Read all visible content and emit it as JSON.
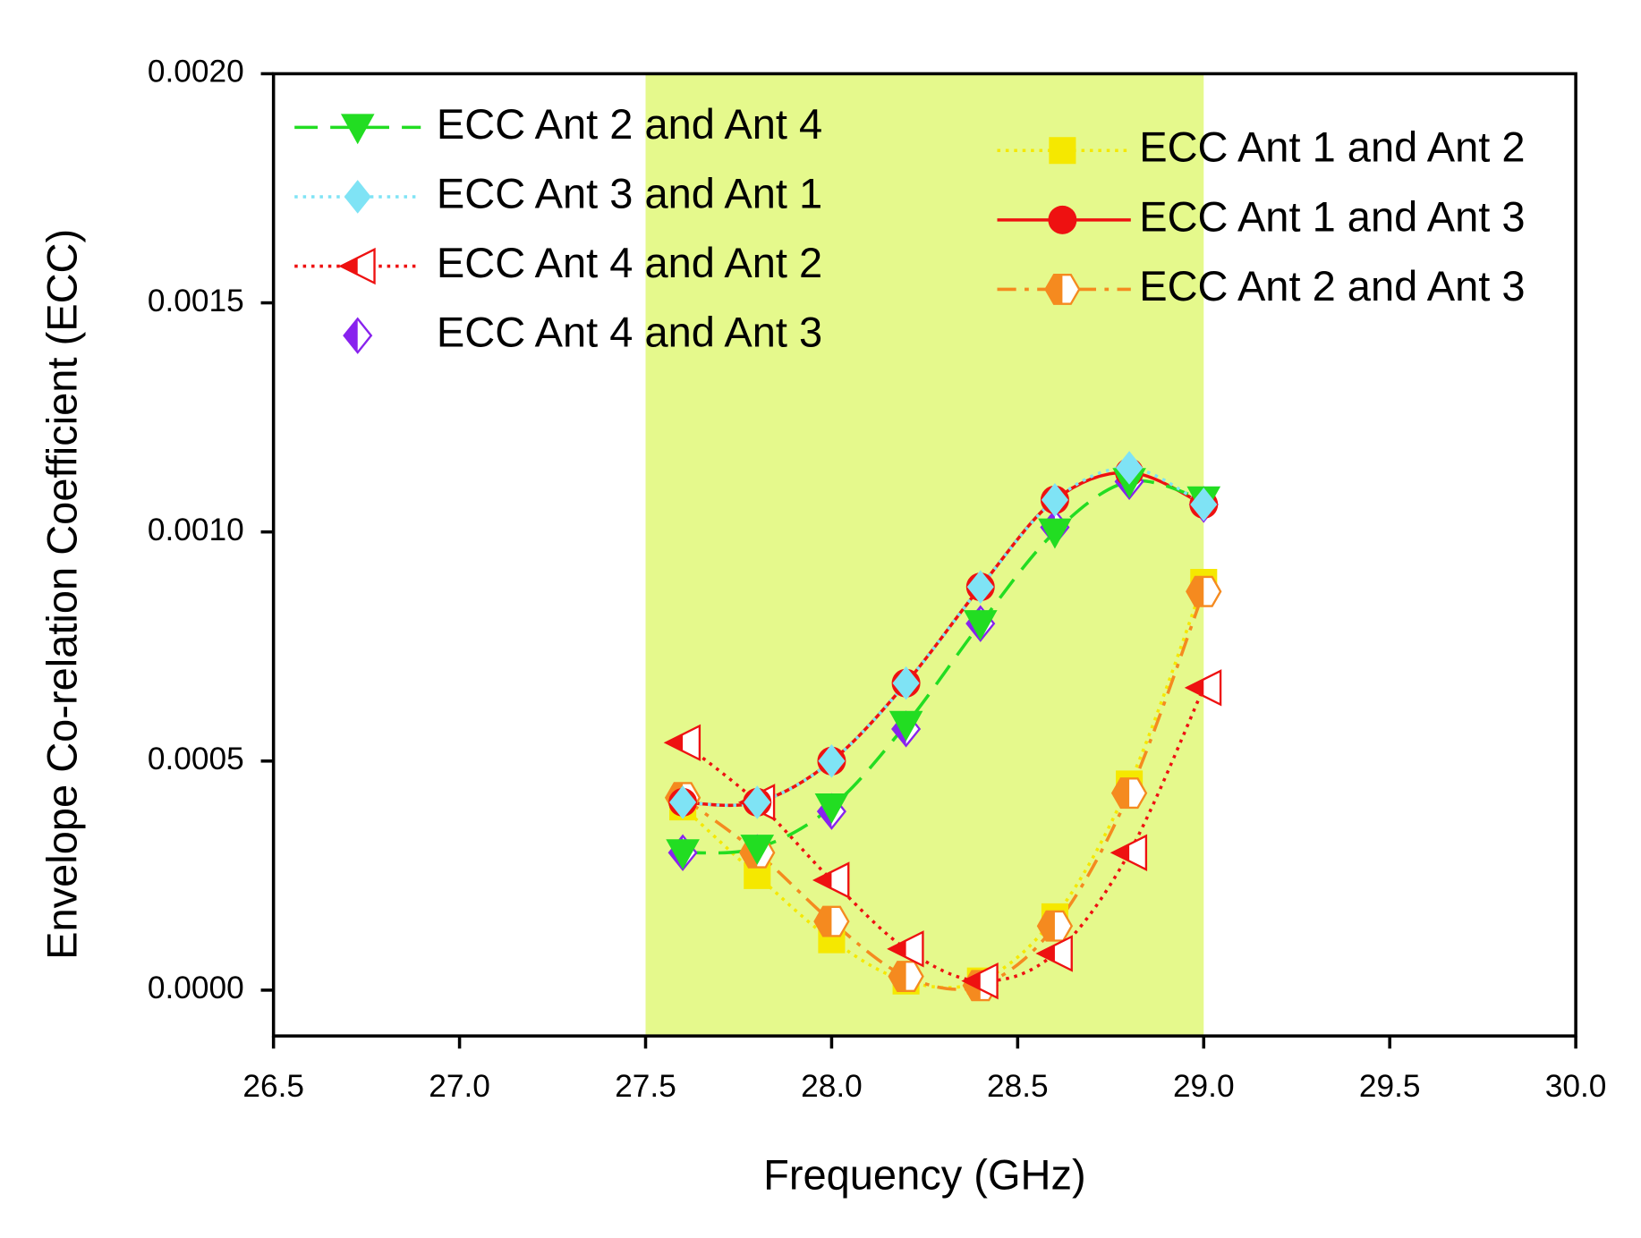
{
  "chart_data": {
    "type": "line",
    "x_label": "Frequency (GHz)",
    "y_label": "Envelope Co-relation Coefficient (ECC)",
    "x": [
      27.6,
      27.8,
      28.0,
      28.2,
      28.4,
      28.6,
      28.8,
      29.0
    ],
    "xlim": [
      26.5,
      30.0
    ],
    "xticks": [
      26.5,
      {
        "value": 27,
        "label": "27.0"
      },
      27.5,
      {
        "value": 28,
        "label": "28.0"
      },
      28.5,
      {
        "value": 29,
        "label": "29.0"
      },
      29.5,
      {
        "value": 30,
        "label": "30.0"
      }
    ],
    "ylim": [
      -0.0001,
      0.002
    ],
    "yticks": [
      {
        "value": 0,
        "label": "0.0000"
      },
      {
        "value": 0.0005,
        "label": "0.0005"
      },
      {
        "value": 0.001,
        "label": "0.0010"
      },
      {
        "value": 0.0015,
        "label": "0.0015"
      },
      {
        "value": 0.002,
        "label": "0.0020"
      }
    ],
    "shaded_region": {
      "x": [
        27.5,
        29.0
      ],
      "color": "#e5f98c"
    },
    "series": [
      {
        "name": "ECC Ant 2 and Ant 4",
        "color": "#22dd22",
        "line": "dash",
        "marker": "triangle-down",
        "fill": "full",
        "values": [
          0.0003,
          0.00031,
          0.0004,
          0.00058,
          0.0008,
          0.001,
          0.00111,
          0.00107
        ]
      },
      {
        "name": "ECC Ant 3 and Ant 1",
        "color": "#7fe3f5",
        "line": "dot",
        "marker": "diamond",
        "fill": "full",
        "values": [
          0.00041,
          0.00041,
          0.0005,
          0.00067,
          0.00088,
          0.00107,
          0.00114,
          0.00106
        ]
      },
      {
        "name": "ECC Ant 4 and Ant 2",
        "color": "#ee1111",
        "line": "dot",
        "marker": "triangle-left",
        "fill": "half",
        "values": [
          0.00054,
          0.00041,
          0.00024,
          9e-05,
          2e-05,
          8e-05,
          0.0003,
          0.00066
        ]
      },
      {
        "name": "ECC Ant 4 and Ant 3",
        "color": "#8822ee",
        "line": "none",
        "marker": "diamond",
        "fill": "half",
        "values": [
          0.0003,
          0.0003,
          0.00039,
          0.00057,
          0.0008,
          0.00101,
          0.00111,
          0.00106
        ]
      },
      {
        "name": "ECC Ant 1 and Ant 2",
        "color": "#f5e800",
        "line": "dot",
        "marker": "square",
        "fill": "full",
        "values": [
          0.0004,
          0.00025,
          0.00011,
          2e-05,
          2e-05,
          0.00016,
          0.00045,
          0.00089
        ]
      },
      {
        "name": "ECC Ant 1 and Ant 3",
        "color": "#ee1111",
        "line": "solid",
        "marker": "circle",
        "fill": "full",
        "values": [
          0.00041,
          0.00041,
          0.0005,
          0.00067,
          0.00088,
          0.00107,
          0.00113,
          0.00106
        ]
      },
      {
        "name": "ECC Ant 2 and Ant 3",
        "color": "#f58a1f",
        "line": "dashdot",
        "marker": "hexagon",
        "fill": "half",
        "values": [
          0.00042,
          0.0003,
          0.00015,
          3e-05,
          1e-05,
          0.00014,
          0.00043,
          0.00087
        ]
      }
    ]
  }
}
